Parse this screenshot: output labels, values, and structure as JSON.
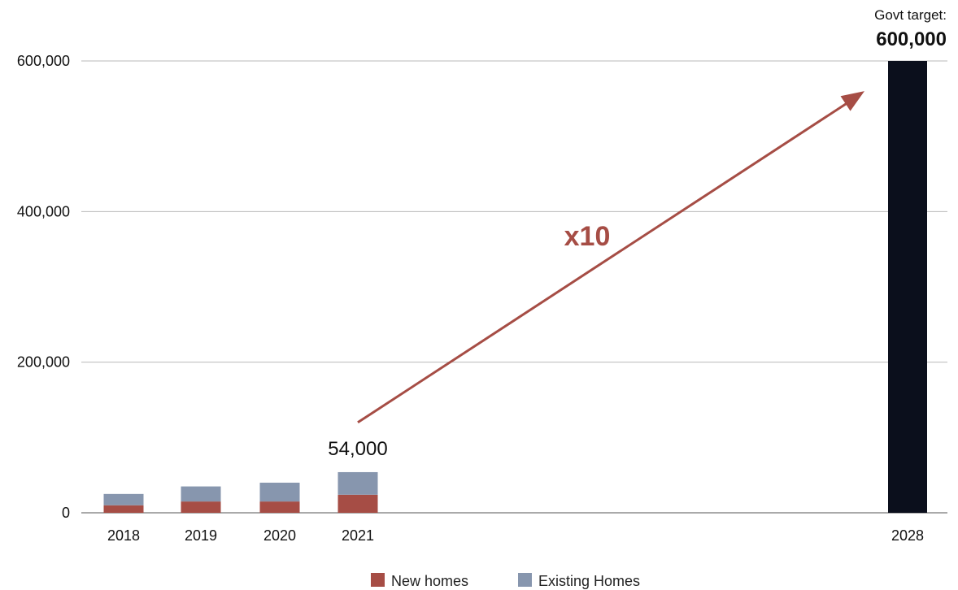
{
  "chart_data": {
    "type": "bar",
    "stacked": true,
    "categories": [
      "2018",
      "2019",
      "2020",
      "2021",
      "2028"
    ],
    "series": [
      {
        "name": "New homes",
        "color": "#a64d45",
        "values": [
          10000,
          15000,
          15000,
          24000,
          null
        ]
      },
      {
        "name": "Existing Homes",
        "color": "#8796ae",
        "values": [
          15000,
          20000,
          25000,
          30000,
          null
        ]
      }
    ],
    "target": {
      "category": "2028",
      "value": 600000,
      "color": "#0b0f1c",
      "label": "Govt target:",
      "value_label": "600,000"
    },
    "annotations": {
      "total_2021_label": "54,000",
      "multiplier_label": "x10",
      "multiplier_color": "#a64d45",
      "arrow_from": {
        "category": "2021",
        "value": 120000
      },
      "arrow_to": {
        "category": "2028",
        "value": 560000
      }
    },
    "y_ticks": [
      {
        "value": 0,
        "label": "0"
      },
      {
        "value": 200000,
        "label": "200,000"
      },
      {
        "value": 400000,
        "label": "400,000"
      },
      {
        "value": 600000,
        "label": "600,000"
      }
    ],
    "ylim": [
      0,
      600000
    ],
    "grid": true,
    "legend": "bottom-center",
    "title": "",
    "xlabel": "",
    "ylabel": ""
  }
}
